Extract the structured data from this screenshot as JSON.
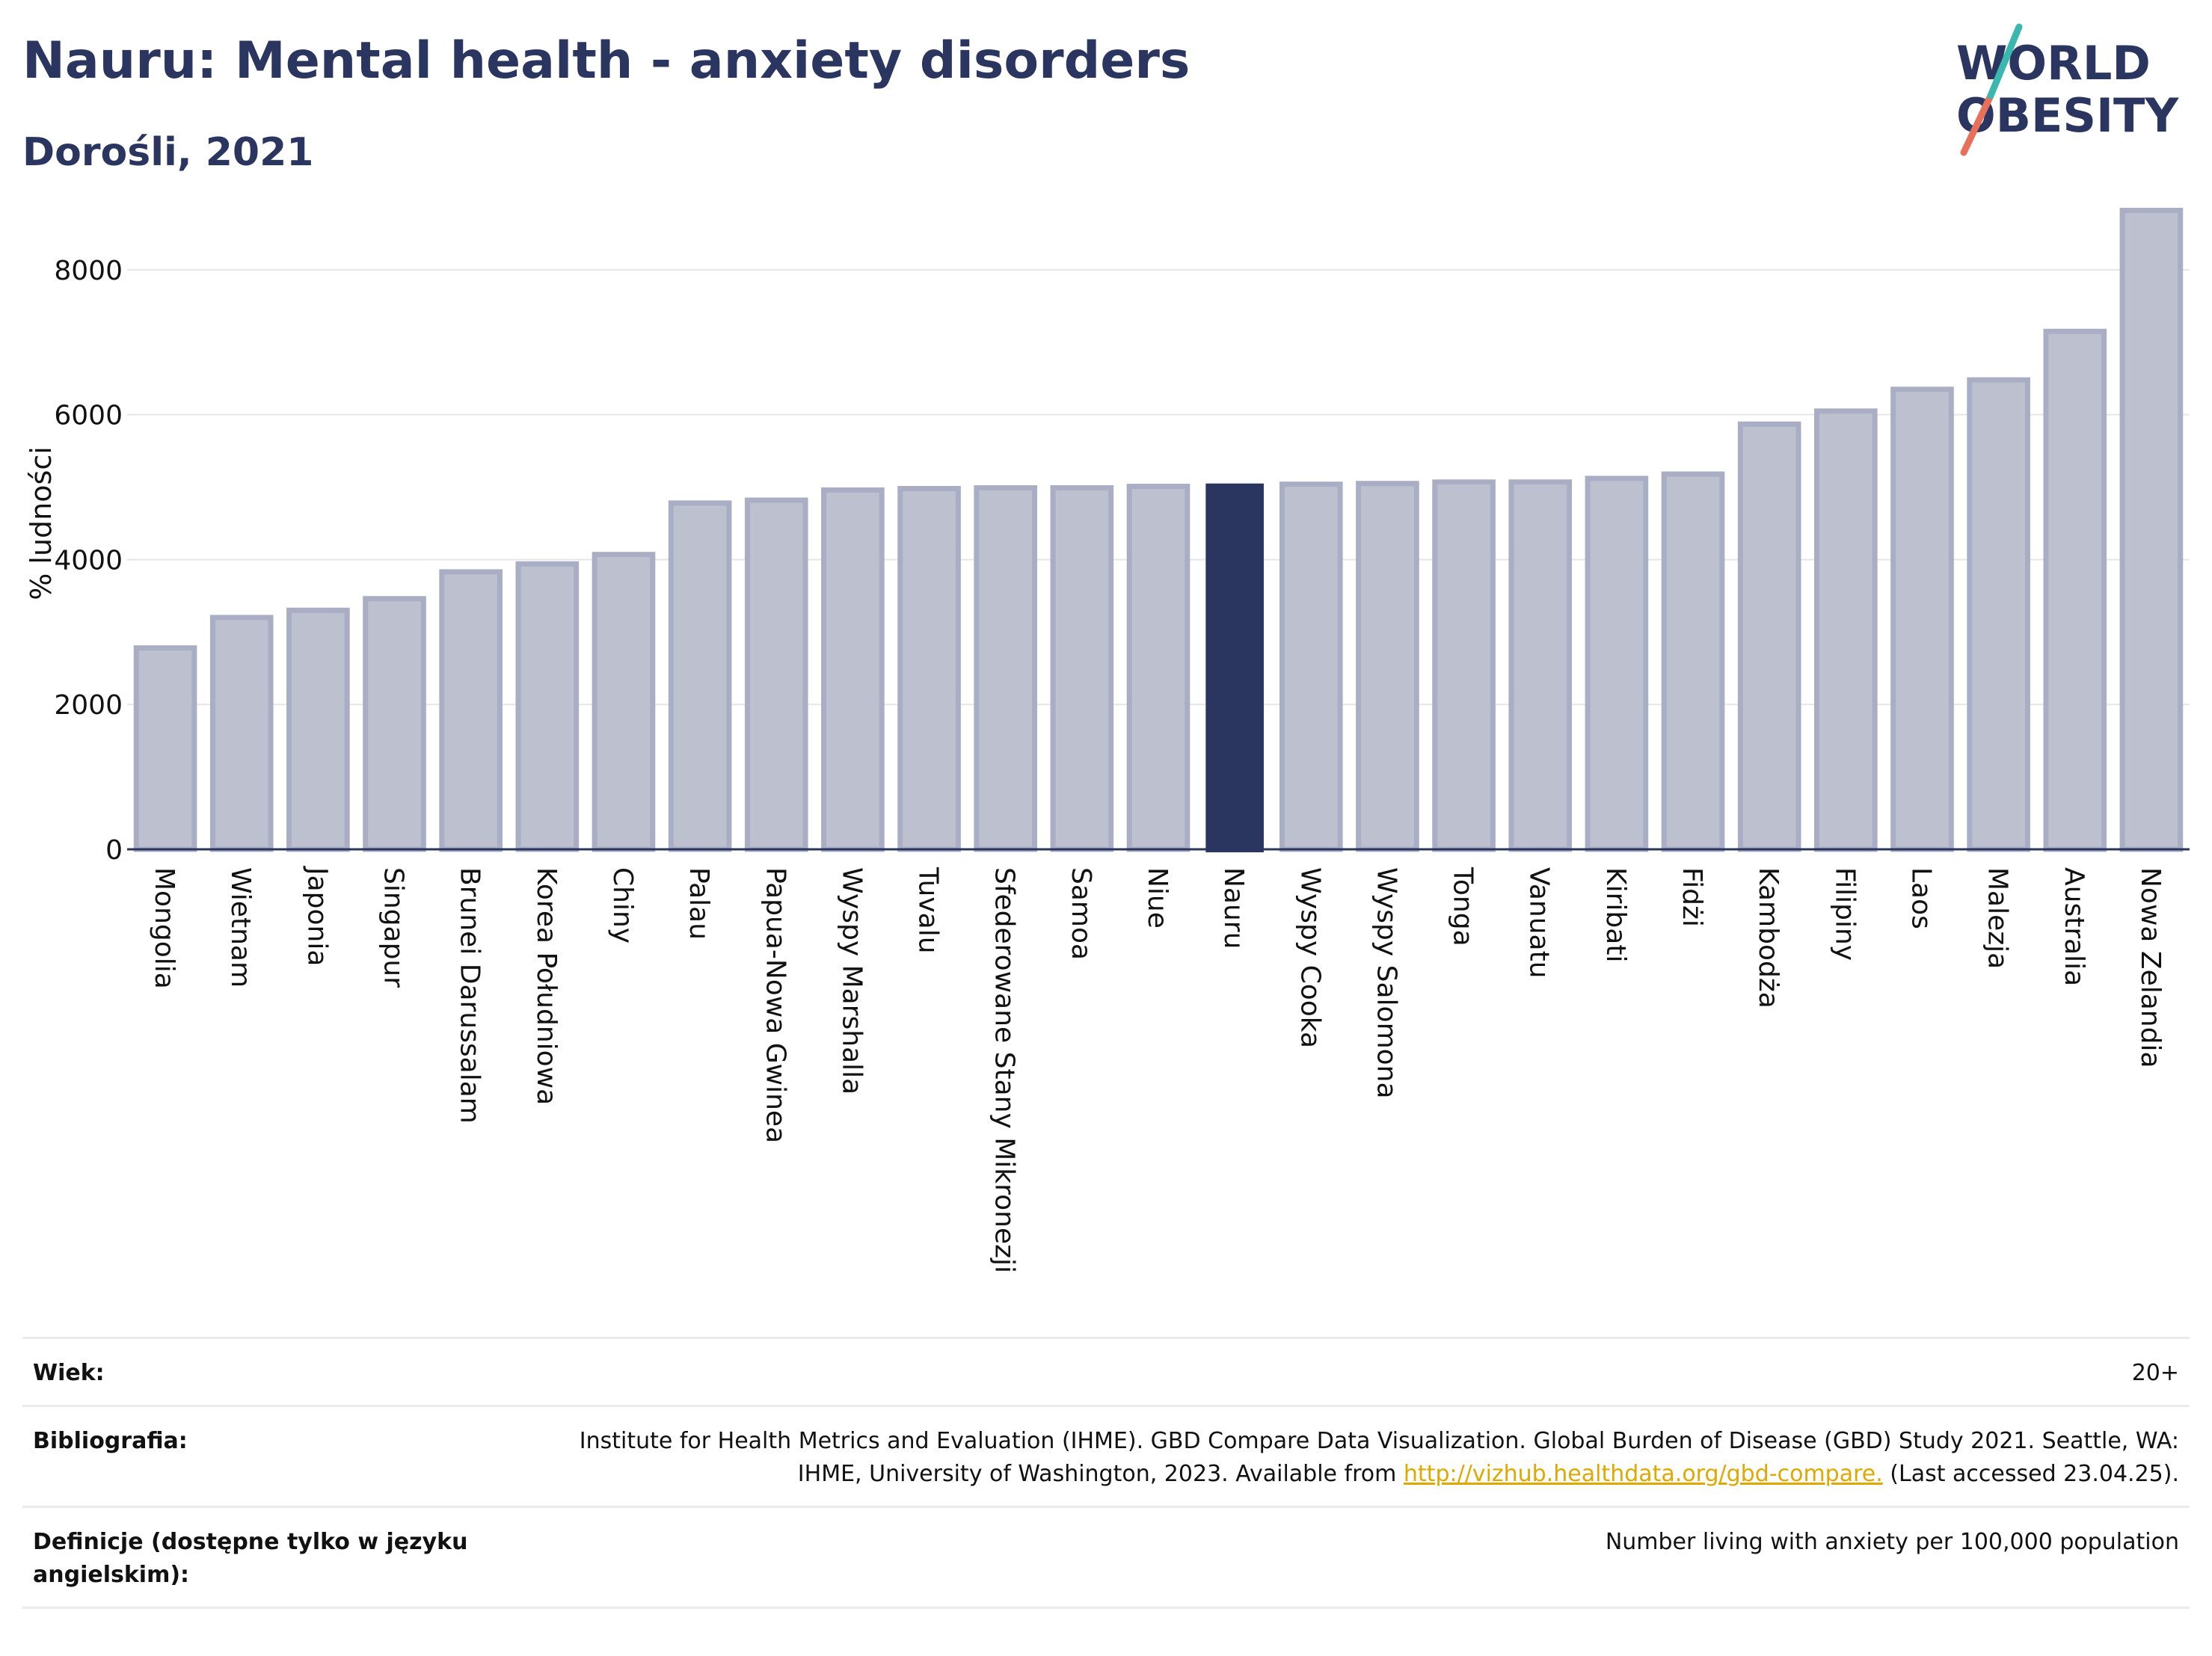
{
  "header": {
    "title": "Nauru: Mental health - anxiety disorders",
    "subtitle": "Dorośli, 2021"
  },
  "logo": {
    "line1": "WORLD",
    "line2": "OBESITY",
    "accent_teal": "#3ab8b0",
    "accent_red": "#e8705a"
  },
  "colors": {
    "bar": "#bdc0cf",
    "bar_border": "#a9aec4",
    "highlight": "#2a3560",
    "axis": "#2a3560",
    "grid": "#e6e6e6",
    "text": "#111111"
  },
  "chart_data": {
    "type": "bar",
    "title": "Nauru: Mental health - anxiety disorders",
    "subtitle": "Dorośli, 2021",
    "ylabel": "% ludności",
    "xlabel": "",
    "ylim": [
      0,
      9000
    ],
    "yticks": [
      0,
      2000,
      4000,
      6000,
      8000
    ],
    "grid": true,
    "highlight": "Nauru",
    "categories": [
      "Mongolia",
      "Wietnam",
      "Japonia",
      "Singapur",
      "Brunei Darussalam",
      "Korea Południowa",
      "Chiny",
      "Palau",
      "Papua-Nowa Gwinea",
      "Wyspy Marshalla",
      "Tuvalu",
      "Sfederowane Stany Mikronezji",
      "Samoa",
      "Niue",
      "Nauru",
      "Wyspy Cooka",
      "Wyspy Salomona",
      "Tonga",
      "Vanuatu",
      "Kiribati",
      "Fidżi",
      "Kambodża",
      "Filipiny",
      "Laos",
      "Malezja",
      "Australia",
      "Nowa Zelandia"
    ],
    "values": [
      2780,
      3200,
      3300,
      3460,
      3830,
      3940,
      4070,
      4780,
      4820,
      4960,
      4980,
      4990,
      4990,
      5010,
      5050,
      5040,
      5050,
      5070,
      5070,
      5120,
      5180,
      5870,
      6050,
      6350,
      6480,
      7150,
      8820
    ]
  },
  "meta": {
    "rows": [
      {
        "label": "Wiek:",
        "value": "20+"
      },
      {
        "label": "Bibliografia:",
        "value_before": "Institute for Health Metrics and Evaluation (IHME). GBD Compare Data Visualization. Global Burden of Disease (GBD) Study 2021. Seattle, WA: IHME, University of Washington, 2023. Available from ",
        "link": "http://vizhub.healthdata.org/gbd-compare.",
        "value_after": " (Last accessed 23.04.25)."
      },
      {
        "label": "Definicje (dostępne tylko w języku angielskim):",
        "value": "Number living with anxiety per 100,000 population"
      }
    ]
  }
}
